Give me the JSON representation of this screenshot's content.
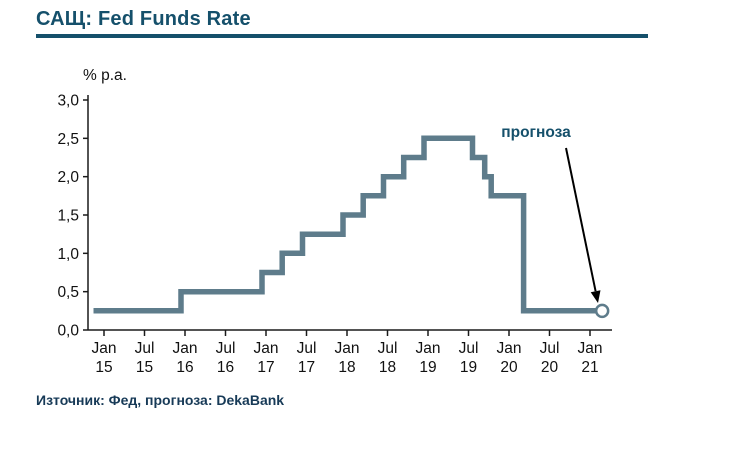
{
  "header": {
    "title": "САЩ: Fed Funds Rate"
  },
  "footer": {
    "source": "Източник: Фед, прогноза: DekaBank"
  },
  "colors": {
    "title": "#15506b",
    "rule": "#15506b",
    "line": "#5e7c8b",
    "axis": "#1a1a1a",
    "annotation": "#15506b",
    "arrow": "#000000",
    "marker_fill": "#ffffff",
    "source": "#173a57"
  },
  "chart_data": {
    "type": "line",
    "step": true,
    "title": "САЩ: Fed Funds Rate",
    "ylabel": "% p.a.",
    "xlabel": "",
    "ylim": [
      0,
      3
    ],
    "grid": false,
    "legend_position": "none",
    "ytick_values": [
      0,
      0.5,
      1,
      1.5,
      2,
      2.5,
      3
    ],
    "ytick_labels": [
      "0,0",
      "0,5",
      "1,0",
      "1,5",
      "2,0",
      "2,5",
      "3,0"
    ],
    "xticks": [
      {
        "x": 2015.0,
        "line1": "Jan",
        "line2": "15"
      },
      {
        "x": 2015.5,
        "line1": "Jul",
        "line2": "15"
      },
      {
        "x": 2016.0,
        "line1": "Jan",
        "line2": "16"
      },
      {
        "x": 2016.5,
        "line1": "Jul",
        "line2": "16"
      },
      {
        "x": 2017.0,
        "line1": "Jan",
        "line2": "17"
      },
      {
        "x": 2017.5,
        "line1": "Jul",
        "line2": "17"
      },
      {
        "x": 2018.0,
        "line1": "Jan",
        "line2": "18"
      },
      {
        "x": 2018.5,
        "line1": "Jul",
        "line2": "18"
      },
      {
        "x": 2019.0,
        "line1": "Jan",
        "line2": "19"
      },
      {
        "x": 2019.5,
        "line1": "Jul",
        "line2": "19"
      },
      {
        "x": 2020.0,
        "line1": "Jan",
        "line2": "20"
      },
      {
        "x": 2020.5,
        "line1": "Jul",
        "line2": "20"
      },
      {
        "x": 2021.0,
        "line1": "Jan",
        "line2": "21"
      }
    ],
    "points": [
      [
        2014.87,
        0.25
      ],
      [
        2015.95,
        0.25
      ],
      [
        2015.95,
        0.5
      ],
      [
        2016.95,
        0.5
      ],
      [
        2016.95,
        0.75
      ],
      [
        2017.2,
        0.75
      ],
      [
        2017.2,
        1.0
      ],
      [
        2017.45,
        1.0
      ],
      [
        2017.45,
        1.25
      ],
      [
        2017.95,
        1.25
      ],
      [
        2017.95,
        1.5
      ],
      [
        2018.2,
        1.5
      ],
      [
        2018.2,
        1.75
      ],
      [
        2018.45,
        1.75
      ],
      [
        2018.45,
        2.0
      ],
      [
        2018.7,
        2.0
      ],
      [
        2018.7,
        2.25
      ],
      [
        2018.95,
        2.25
      ],
      [
        2018.95,
        2.5
      ],
      [
        2019.55,
        2.5
      ],
      [
        2019.55,
        2.25
      ],
      [
        2019.7,
        2.25
      ],
      [
        2019.7,
        2.0
      ],
      [
        2019.78,
        2.0
      ],
      [
        2019.78,
        1.75
      ],
      [
        2020.18,
        1.75
      ],
      [
        2020.18,
        0.25
      ],
      [
        2021.15,
        0.25
      ]
    ],
    "forecast": {
      "x": 2021.15,
      "y": 0.25,
      "label": "прогноза"
    }
  }
}
